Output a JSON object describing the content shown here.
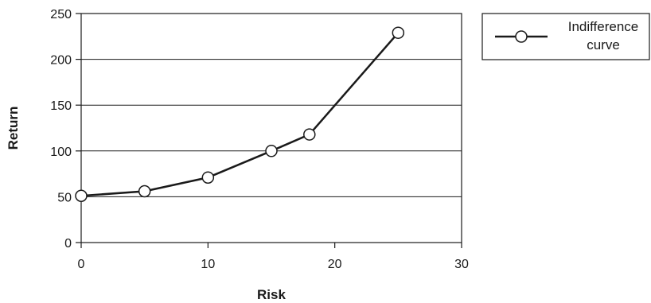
{
  "chart_data": {
    "type": "line",
    "title": "",
    "xlabel": "Risk",
    "ylabel": "Return",
    "xlim": [
      0,
      30
    ],
    "ylim": [
      0,
      250
    ],
    "x_ticks": [
      0,
      10,
      20,
      30
    ],
    "y_ticks": [
      0,
      50,
      100,
      150,
      200,
      250
    ],
    "grid": "horizontal",
    "legend_position": "top-right-outside",
    "series": [
      {
        "name": "Indifference curve",
        "legend_lines": [
          "Indifference",
          "curve"
        ],
        "color": "#1a1a1a",
        "marker": "open-circle",
        "points": [
          {
            "x": 0,
            "y": 51
          },
          {
            "x": 5,
            "y": 56
          },
          {
            "x": 10,
            "y": 71
          },
          {
            "x": 15,
            "y": 100
          },
          {
            "x": 18,
            "y": 118
          },
          {
            "x": 25,
            "y": 229
          }
        ]
      }
    ]
  }
}
